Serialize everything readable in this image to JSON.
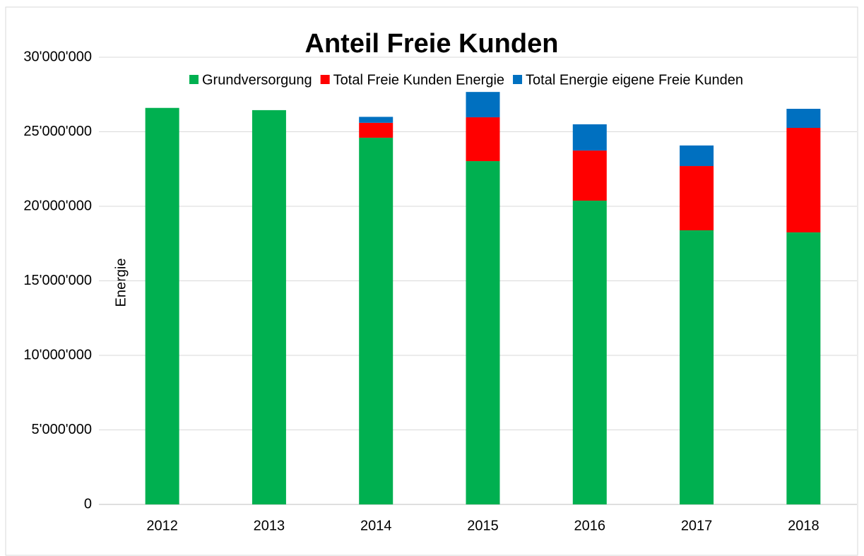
{
  "chart_data": {
    "type": "stacked_bar",
    "title": "Anteil Freie Kunden",
    "y_label": "Energie",
    "categories": [
      "2012",
      "2013",
      "2014",
      "2015",
      "2016",
      "2017",
      "2018"
    ],
    "series": [
      {
        "name": "Grundversorgung",
        "color": "#00b050",
        "values": [
          26600000,
          26450000,
          24600000,
          23030000,
          20380000,
          18390000,
          18250000
        ]
      },
      {
        "name": "Total Freie Kunden Energie",
        "color": "#ff0000",
        "values": [
          0,
          0,
          1000000,
          2940000,
          3360000,
          4310000,
          7010000
        ]
      },
      {
        "name": "Total Energie eigene Freie Kunden",
        "color": "#0070c0",
        "values": [
          0,
          0,
          400000,
          1700000,
          1760000,
          1380000,
          1280000
        ]
      }
    ],
    "ylim": [
      0,
      30000000
    ],
    "yticks": [
      0,
      {
        "value": 5000000,
        "label": "5'000'000"
      },
      {
        "value": 10000000,
        "label": "10'000'000"
      },
      {
        "value": 15000000,
        "label": "15'000'000"
      },
      {
        "value": 20000000,
        "label": "20'000'000"
      },
      {
        "value": 25000000,
        "label": "25'000'000"
      },
      {
        "value": 30000000,
        "label": "30'000'000"
      }
    ],
    "grid": true
  }
}
